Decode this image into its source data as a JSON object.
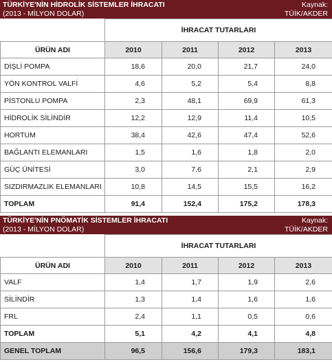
{
  "tables": [
    {
      "title": "TÜRKİYE'NİN HİDROLİK SİSTEMLER İHRACATI",
      "subtitle": "(2013 - MİLYON DOLAR)",
      "source_label": "Kaynak:",
      "source_value": "TÜİK/AKDER",
      "group_header": "İHRACAT TUTARLARI",
      "product_header": "ÜRÜN ADI",
      "years": [
        "2010",
        "2011",
        "2012",
        "2013"
      ],
      "rows": [
        {
          "name": "DİŞLİ POMPA",
          "v": [
            "18,6",
            "20,0",
            "21,7",
            "24,0"
          ]
        },
        {
          "name": "YÖN KONTROL VALFİ",
          "v": [
            "4,6",
            "5,2",
            "5,4",
            "8,8"
          ]
        },
        {
          "name": "PİSTONLU POMPA",
          "v": [
            "2,3",
            "48,1",
            "69,9",
            "61,3"
          ]
        },
        {
          "name": "HİDROLİK SİLİNDİR",
          "v": [
            "12,2",
            "12,9",
            "11,4",
            "10,5"
          ]
        },
        {
          "name": "HORTUM",
          "v": [
            "38,4",
            "42,6",
            "47,4",
            "52,6"
          ]
        },
        {
          "name": "BAĞLANTI ELEMANLARI",
          "v": [
            "1,5",
            "1,6",
            "1,8",
            "2,0"
          ]
        },
        {
          "name": "GÜÇ ÜNİTESİ",
          "v": [
            "3,0",
            "7,6",
            "2,1",
            "2,9"
          ]
        },
        {
          "name": "SIZDIRMAZLIK ELEMANLARI",
          "v": [
            "10,8",
            "14,5",
            "15,5",
            "16,2"
          ]
        }
      ],
      "total": {
        "name": "TOPLAM",
        "v": [
          "91,4",
          "152,4",
          "175,2",
          "178,3"
        ]
      }
    },
    {
      "title": "TÜRKİYE'NİN PNÖMATİK SİSTEMLER İHRACATI",
      "subtitle": "(2013 - MİLYON DOLAR)",
      "source_label": "Kaynak:",
      "source_value": "TÜİK/AKDER",
      "group_header": "İHRACAT TUTARLARI",
      "product_header": "ÜRÜN ADI",
      "years": [
        "2010",
        "2011",
        "2012",
        "2013"
      ],
      "rows": [
        {
          "name": "VALF",
          "v": [
            "1,4",
            "1,7",
            "1,9",
            "2,6"
          ]
        },
        {
          "name": "SİLİNDİR",
          "v": [
            "1,3",
            "1,4",
            "1,6",
            "1,6"
          ]
        },
        {
          "name": "FRL",
          "v": [
            "2,4",
            "1,1",
            "0,5",
            "0,6"
          ]
        }
      ],
      "total": {
        "name": "TOPLAM",
        "v": [
          "5,1",
          "4,2",
          "4,1",
          "4,8"
        ]
      },
      "grand_total": {
        "name": "GENEL TOPLAM",
        "v": [
          "96,5",
          "156,6",
          "179,3",
          "183,1"
        ]
      }
    }
  ]
}
